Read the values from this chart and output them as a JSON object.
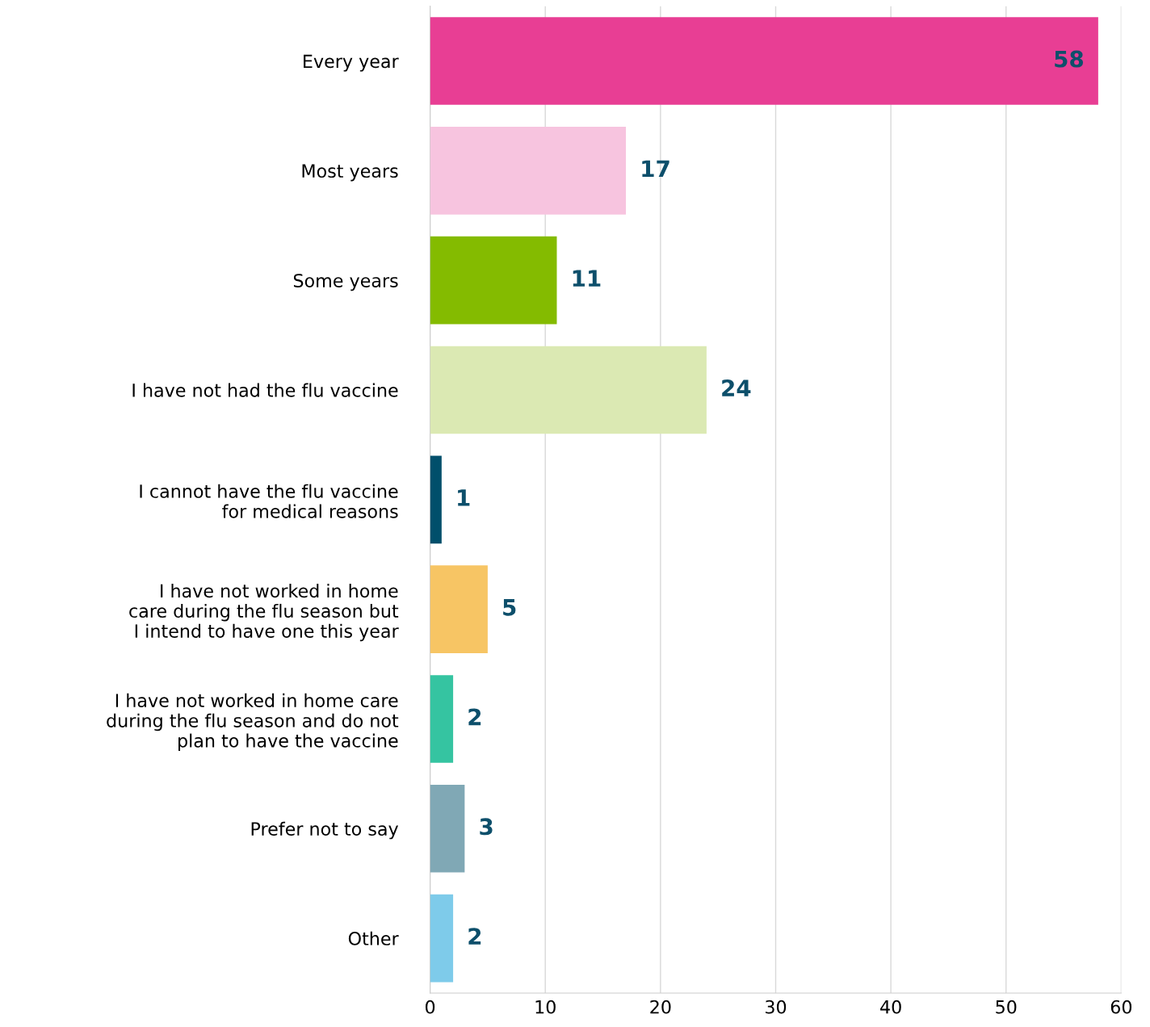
{
  "chart_data": {
    "type": "bar",
    "orientation": "horizontal",
    "categories": [
      "Every year",
      "Most years",
      "Some years",
      "I have not had the flu vaccine",
      "I cannot have the flu vaccine\nfor medical reasons",
      "I have not worked in home\ncare during the flu season but\nI intend to have one this year",
      "I have not worked in home care\nduring the flu season and do not\nplan to have the vaccine",
      "Prefer not to say",
      "Other"
    ],
    "values": [
      58,
      17,
      11,
      24,
      1,
      5,
      2,
      3,
      2
    ],
    "colors": [
      "#e83e94",
      "#f7c4df",
      "#84bb00",
      "#dbe9b3",
      "#004f6b",
      "#f7c564",
      "#35c4a1",
      "#80a8b5",
      "#7ecbea"
    ],
    "xlim": [
      0,
      60
    ],
    "xticks": [
      0,
      10,
      20,
      30,
      40,
      50,
      60
    ],
    "grid": "x",
    "data_labels": true,
    "legend": false
  }
}
